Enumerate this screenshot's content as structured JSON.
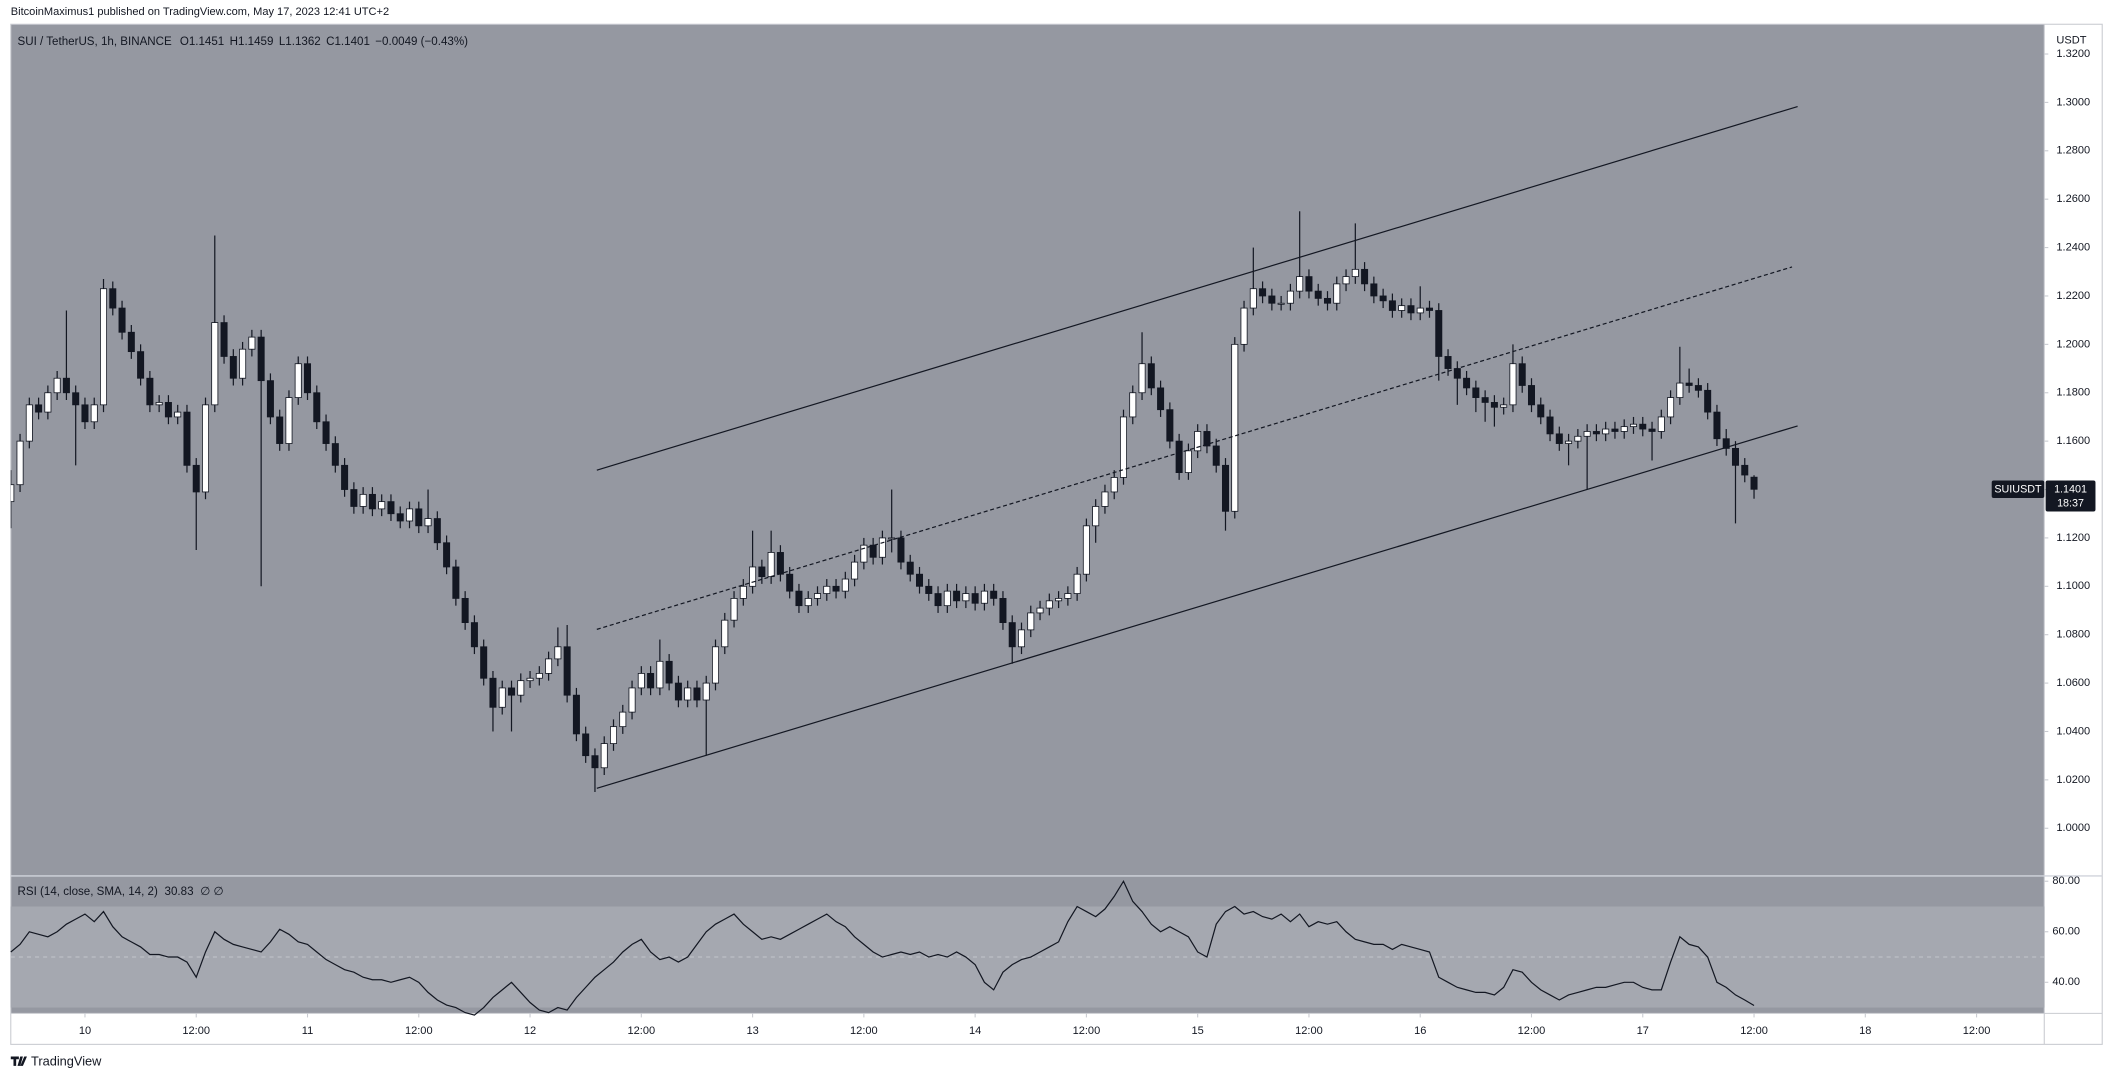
{
  "page": {
    "publisher": "BitcoinMaximus1 published on TradingView.com, May 17, 2023 12:41 UTC+2",
    "footer": "TradingView",
    "price_axis_unit": "USDT"
  },
  "chart_data": [
    {
      "type": "candlestick",
      "title": "SUI / TetherUS, 1h, BINANCE",
      "legend": [
        [
          "O",
          "1.1451"
        ],
        [
          "H",
          "1.1459"
        ],
        [
          "L",
          "1.1362"
        ],
        [
          "C",
          "1.1401"
        ]
      ],
      "change": "−0.0049 (−0.43%)",
      "symbol": "SUIUSDT",
      "countdown": "18:37",
      "up_color": "#ffffff",
      "down_color": "#131722",
      "wick_color": "#131722",
      "open": [
        1.135,
        1.142,
        1.16,
        1.175,
        1.172,
        1.18,
        1.186,
        1.18,
        1.175,
        1.168,
        1.175,
        1.223,
        1.215,
        1.205,
        1.197,
        1.186,
        1.175,
        1.176,
        1.17,
        1.172,
        1.15,
        1.139,
        1.175,
        1.209,
        1.195,
        1.186,
        1.198,
        1.203,
        1.185,
        1.17,
        1.159,
        1.178,
        1.192,
        1.18,
        1.168,
        1.159,
        1.15,
        1.14,
        1.133,
        1.138,
        1.132,
        1.135,
        1.13,
        1.127,
        1.132,
        1.125,
        1.128,
        1.118,
        1.108,
        1.095,
        1.085,
        1.075,
        1.062,
        1.05,
        1.058,
        1.055,
        1.061,
        1.062,
        1.064,
        1.07,
        1.075,
        1.055,
        1.039,
        1.03,
        1.025,
        1.035,
        1.042,
        1.048,
        1.058,
        1.064,
        1.058,
        1.069,
        1.06,
        1.053,
        1.058,
        1.053,
        1.06,
        1.075,
        1.086,
        1.095,
        1.1,
        1.108,
        1.104,
        1.114,
        1.105,
        1.098,
        1.092,
        1.095,
        1.097,
        1.1,
        1.098,
        1.103,
        1.11,
        1.117,
        1.112,
        1.12,
        1.12,
        1.11,
        1.105,
        1.1,
        1.097,
        1.092,
        1.098,
        1.094,
        1.097,
        1.093,
        1.098,
        1.095,
        1.085,
        1.075,
        1.082,
        1.089,
        1.091,
        1.094,
        1.095,
        1.097,
        1.105,
        1.125,
        1.133,
        1.139,
        1.145,
        1.17,
        1.18,
        1.192,
        1.182,
        1.173,
        1.16,
        1.147,
        1.156,
        1.164,
        1.158,
        1.15,
        1.131,
        1.2,
        1.215,
        1.223,
        1.22,
        1.217,
        1.217,
        1.222,
        1.228,
        1.222,
        1.219,
        1.217,
        1.225,
        1.228,
        1.231,
        1.225,
        1.22,
        1.218,
        1.214,
        1.216,
        1.213,
        1.215,
        1.214,
        1.195,
        1.19,
        1.186,
        1.182,
        1.178,
        1.176,
        1.174,
        1.175,
        1.192,
        1.183,
        1.175,
        1.17,
        1.163,
        1.159,
        1.16,
        1.162,
        1.164,
        1.163,
        1.165,
        1.164,
        1.166,
        1.167,
        1.165,
        1.164,
        1.17,
        1.178,
        1.184,
        1.183,
        1.181,
        1.172,
        1.161,
        1.157,
        1.15,
        1.1451
      ],
      "high": [
        1.148,
        1.163,
        1.178,
        1.178,
        1.183,
        1.189,
        1.214,
        1.183,
        1.178,
        1.178,
        1.227,
        1.226,
        1.218,
        1.208,
        1.2,
        1.189,
        1.179,
        1.179,
        1.175,
        1.175,
        1.153,
        1.178,
        1.245,
        1.212,
        1.198,
        1.201,
        1.206,
        1.206,
        1.188,
        1.173,
        1.181,
        1.195,
        1.195,
        1.183,
        1.171,
        1.162,
        1.153,
        1.143,
        1.141,
        1.141,
        1.138,
        1.138,
        1.133,
        1.135,
        1.135,
        1.14,
        1.131,
        1.121,
        1.111,
        1.098,
        1.088,
        1.078,
        1.065,
        1.061,
        1.061,
        1.064,
        1.065,
        1.067,
        1.073,
        1.083,
        1.084,
        1.058,
        1.042,
        1.033,
        1.038,
        1.045,
        1.051,
        1.061,
        1.067,
        1.067,
        1.078,
        1.072,
        1.063,
        1.061,
        1.061,
        1.063,
        1.078,
        1.089,
        1.098,
        1.103,
        1.123,
        1.111,
        1.123,
        1.117,
        1.108,
        1.101,
        1.098,
        1.1,
        1.103,
        1.103,
        1.106,
        1.113,
        1.12,
        1.12,
        1.123,
        1.14,
        1.123,
        1.113,
        1.108,
        1.103,
        1.1,
        1.101,
        1.101,
        1.1,
        1.1,
        1.101,
        1.101,
        1.098,
        1.088,
        1.085,
        1.092,
        1.094,
        1.097,
        1.098,
        1.1,
        1.108,
        1.128,
        1.136,
        1.142,
        1.148,
        1.173,
        1.183,
        1.205,
        1.195,
        1.185,
        1.176,
        1.163,
        1.159,
        1.167,
        1.167,
        1.161,
        1.153,
        1.203,
        1.218,
        1.24,
        1.226,
        1.223,
        1.22,
        1.225,
        1.255,
        1.231,
        1.225,
        1.222,
        1.228,
        1.231,
        1.25,
        1.234,
        1.228,
        1.223,
        1.221,
        1.219,
        1.219,
        1.224,
        1.218,
        1.217,
        1.198,
        1.193,
        1.189,
        1.185,
        1.181,
        1.179,
        1.178,
        1.2,
        1.195,
        1.186,
        1.178,
        1.173,
        1.166,
        1.163,
        1.165,
        1.167,
        1.167,
        1.168,
        1.168,
        1.169,
        1.17,
        1.17,
        1.168,
        1.173,
        1.181,
        1.199,
        1.19,
        1.186,
        1.184,
        1.175,
        1.165,
        1.16,
        1.153,
        1.1459
      ],
      "low": [
        1.124,
        1.139,
        1.157,
        1.169,
        1.169,
        1.177,
        1.177,
        1.15,
        1.165,
        1.165,
        1.172,
        1.212,
        1.202,
        1.194,
        1.183,
        1.172,
        1.172,
        1.167,
        1.167,
        1.147,
        1.115,
        1.136,
        1.172,
        1.192,
        1.183,
        1.183,
        1.195,
        1.1,
        1.167,
        1.156,
        1.156,
        1.175,
        1.177,
        1.165,
        1.156,
        1.147,
        1.137,
        1.13,
        1.13,
        1.129,
        1.129,
        1.127,
        1.124,
        1.124,
        1.122,
        1.122,
        1.115,
        1.105,
        1.092,
        1.082,
        1.072,
        1.059,
        1.04,
        1.047,
        1.04,
        1.052,
        1.058,
        1.059,
        1.061,
        1.067,
        1.052,
        1.036,
        1.027,
        1.015,
        1.022,
        1.032,
        1.039,
        1.045,
        1.055,
        1.055,
        1.055,
        1.057,
        1.05,
        1.05,
        1.05,
        1.03,
        1.057,
        1.072,
        1.083,
        1.092,
        1.097,
        1.101,
        1.101,
        1.102,
        1.095,
        1.089,
        1.089,
        1.092,
        1.094,
        1.095,
        1.095,
        1.1,
        1.107,
        1.109,
        1.109,
        1.114,
        1.107,
        1.102,
        1.097,
        1.094,
        1.089,
        1.089,
        1.091,
        1.091,
        1.09,
        1.09,
        1.092,
        1.082,
        1.068,
        1.072,
        1.079,
        1.086,
        1.088,
        1.091,
        1.092,
        1.094,
        1.102,
        1.118,
        1.13,
        1.136,
        1.142,
        1.167,
        1.177,
        1.179,
        1.17,
        1.157,
        1.144,
        1.144,
        1.153,
        1.155,
        1.147,
        1.123,
        1.128,
        1.197,
        1.212,
        1.217,
        1.214,
        1.214,
        1.214,
        1.219,
        1.219,
        1.216,
        1.214,
        1.214,
        1.222,
        1.225,
        1.222,
        1.217,
        1.215,
        1.211,
        1.211,
        1.21,
        1.21,
        1.211,
        1.185,
        1.187,
        1.175,
        1.179,
        1.172,
        1.168,
        1.166,
        1.171,
        1.172,
        1.18,
        1.172,
        1.167,
        1.16,
        1.156,
        1.15,
        1.157,
        1.14,
        1.16,
        1.16,
        1.161,
        1.161,
        1.163,
        1.162,
        1.152,
        1.161,
        1.167,
        1.175,
        1.18,
        1.178,
        1.169,
        1.158,
        1.154,
        1.126,
        1.143,
        1.1362
      ],
      "close": [
        1.142,
        1.16,
        1.175,
        1.172,
        1.18,
        1.186,
        1.18,
        1.175,
        1.168,
        1.175,
        1.223,
        1.215,
        1.205,
        1.197,
        1.186,
        1.175,
        1.176,
        1.17,
        1.172,
        1.15,
        1.139,
        1.175,
        1.209,
        1.195,
        1.186,
        1.198,
        1.203,
        1.185,
        1.17,
        1.159,
        1.178,
        1.192,
        1.18,
        1.168,
        1.159,
        1.15,
        1.14,
        1.133,
        1.138,
        1.132,
        1.135,
        1.13,
        1.127,
        1.132,
        1.125,
        1.128,
        1.118,
        1.108,
        1.095,
        1.085,
        1.075,
        1.062,
        1.05,
        1.058,
        1.055,
        1.061,
        1.062,
        1.064,
        1.07,
        1.075,
        1.055,
        1.039,
        1.03,
        1.025,
        1.035,
        1.042,
        1.048,
        1.058,
        1.064,
        1.058,
        1.069,
        1.06,
        1.053,
        1.058,
        1.053,
        1.06,
        1.075,
        1.086,
        1.095,
        1.1,
        1.108,
        1.104,
        1.114,
        1.105,
        1.098,
        1.092,
        1.095,
        1.097,
        1.1,
        1.098,
        1.103,
        1.11,
        1.117,
        1.112,
        1.12,
        1.12,
        1.11,
        1.105,
        1.1,
        1.097,
        1.092,
        1.098,
        1.094,
        1.097,
        1.093,
        1.098,
        1.095,
        1.085,
        1.075,
        1.082,
        1.089,
        1.091,
        1.094,
        1.095,
        1.097,
        1.105,
        1.125,
        1.133,
        1.139,
        1.145,
        1.17,
        1.18,
        1.192,
        1.182,
        1.173,
        1.16,
        1.147,
        1.156,
        1.164,
        1.158,
        1.15,
        1.131,
        1.2,
        1.215,
        1.223,
        1.22,
        1.217,
        1.217,
        1.222,
        1.228,
        1.222,
        1.219,
        1.217,
        1.225,
        1.228,
        1.231,
        1.225,
        1.22,
        1.218,
        1.214,
        1.216,
        1.213,
        1.215,
        1.214,
        1.195,
        1.19,
        1.186,
        1.182,
        1.178,
        1.176,
        1.174,
        1.175,
        1.192,
        1.183,
        1.175,
        1.17,
        1.163,
        1.159,
        1.16,
        1.162,
        1.164,
        1.163,
        1.165,
        1.164,
        1.166,
        1.167,
        1.165,
        1.164,
        1.17,
        1.178,
        1.184,
        1.183,
        1.181,
        1.172,
        1.161,
        1.157,
        1.15,
        1.146,
        1.1401
      ],
      "trend_lines": [
        {
          "x": [
            63.2,
            192.7
          ],
          "y": [
            1.148,
            1.2983
          ],
          "style": "solid"
        },
        {
          "x": [
            63.2,
            192.1
          ],
          "y": [
            1.0822,
            1.232
          ],
          "style": "dashed"
        },
        {
          "x": [
            63.2,
            192.7
          ],
          "y": [
            1.0165,
            1.1663
          ],
          "style": "solid"
        }
      ],
      "xlim": [
        0,
        219.3
      ],
      "xticks": [
        {
          "value": 8,
          "label": "10"
        },
        {
          "value": 20,
          "label": "12:00"
        },
        {
          "value": 32,
          "label": "11"
        },
        {
          "value": 44,
          "label": "12:00"
        },
        {
          "value": 56,
          "label": "12"
        },
        {
          "value": 68,
          "label": "12:00"
        },
        {
          "value": 80,
          "label": "13"
        },
        {
          "value": 92,
          "label": "12:00"
        },
        {
          "value": 104,
          "label": "14"
        },
        {
          "value": 116,
          "label": "12:00"
        },
        {
          "value": 128,
          "label": "15"
        },
        {
          "value": 140,
          "label": "12:00"
        },
        {
          "value": 152,
          "label": "16"
        },
        {
          "value": 164,
          "label": "12:00"
        },
        {
          "value": 176,
          "label": "17"
        },
        {
          "value": 188,
          "label": "12:00"
        },
        {
          "value": 200,
          "label": "18"
        },
        {
          "value": 212,
          "label": "12:00"
        }
      ],
      "ylim": [
        0.9803,
        1.3323
      ],
      "yticks": [
        {
          "value": 1.0,
          "label": "1.0000"
        },
        {
          "value": 1.02,
          "label": "1.0200"
        },
        {
          "value": 1.04,
          "label": "1.0400"
        },
        {
          "value": 1.06,
          "label": "1.0600"
        },
        {
          "value": 1.08,
          "label": "1.0800"
        },
        {
          "value": 1.1,
          "label": "1.1000"
        },
        {
          "value": 1.12,
          "label": "1.1200"
        },
        {
          "value": 1.14,
          "label": "1.1400"
        },
        {
          "value": 1.16,
          "label": "1.1600"
        },
        {
          "value": 1.18,
          "label": "1.1800"
        },
        {
          "value": 1.2,
          "label": "1.2000"
        },
        {
          "value": 1.22,
          "label": "1.2200"
        },
        {
          "value": 1.24,
          "label": "1.2400"
        },
        {
          "value": 1.26,
          "label": "1.2600"
        },
        {
          "value": 1.28,
          "label": "1.2800"
        },
        {
          "value": 1.3,
          "label": "1.3000"
        },
        {
          "value": 1.32,
          "label": "1.3200"
        }
      ],
      "grid": false
    },
    {
      "type": "line",
      "title": "RSI (14, close, SMA, 14, 2)",
      "last_label": "30.83",
      "flags": "∅ ∅",
      "color": "#131722",
      "band": [
        30,
        70
      ],
      "midline": 50,
      "values": [
        52,
        55,
        60,
        59,
        58,
        60,
        63,
        65,
        67,
        64,
        68,
        62,
        58,
        56,
        54,
        51,
        51,
        50,
        50,
        48,
        42,
        52,
        60,
        57,
        55,
        54,
        53,
        52,
        56,
        61,
        59,
        56,
        55,
        52,
        49,
        47,
        45,
        44,
        42,
        41,
        41,
        40,
        41,
        42,
        40,
        36,
        33,
        31,
        30,
        28,
        27,
        30,
        34,
        37,
        40,
        36,
        32,
        29,
        28,
        30,
        29,
        34,
        38,
        42,
        45,
        48,
        52,
        55,
        57,
        52,
        49,
        50,
        48,
        50,
        55,
        60,
        63,
        65,
        67,
        63,
        60,
        57,
        58,
        57,
        59,
        61,
        63,
        65,
        67,
        64,
        62,
        58,
        55,
        52,
        50,
        51,
        52,
        51,
        52,
        50,
        51,
        50,
        52,
        50,
        47,
        40,
        37,
        44,
        47,
        49,
        50,
        52,
        54,
        56,
        64,
        70,
        68,
        66,
        69,
        74,
        80,
        72,
        68,
        63,
        60,
        62,
        60,
        58,
        52,
        50,
        63,
        68,
        70,
        67,
        68,
        66,
        65,
        67,
        64,
        67,
        62,
        64,
        63,
        64,
        60,
        57,
        56,
        55,
        55,
        53,
        55,
        54,
        53,
        52,
        42,
        40,
        38,
        37,
        36,
        36,
        35,
        38,
        45,
        44,
        40,
        37,
        35,
        33,
        35,
        36,
        37,
        38,
        38,
        39,
        40,
        40,
        38,
        37,
        37,
        48,
        58,
        55,
        54,
        50,
        40,
        38,
        35,
        33,
        30.83
      ],
      "xlim": [
        0,
        219.3
      ],
      "ylim": [
        27.7,
        82.1
      ],
      "yticks": [
        {
          "value": 40,
          "label": "40.00"
        },
        {
          "value": 60,
          "label": "60.00"
        },
        {
          "value": 80,
          "label": "80.00"
        }
      ]
    }
  ]
}
